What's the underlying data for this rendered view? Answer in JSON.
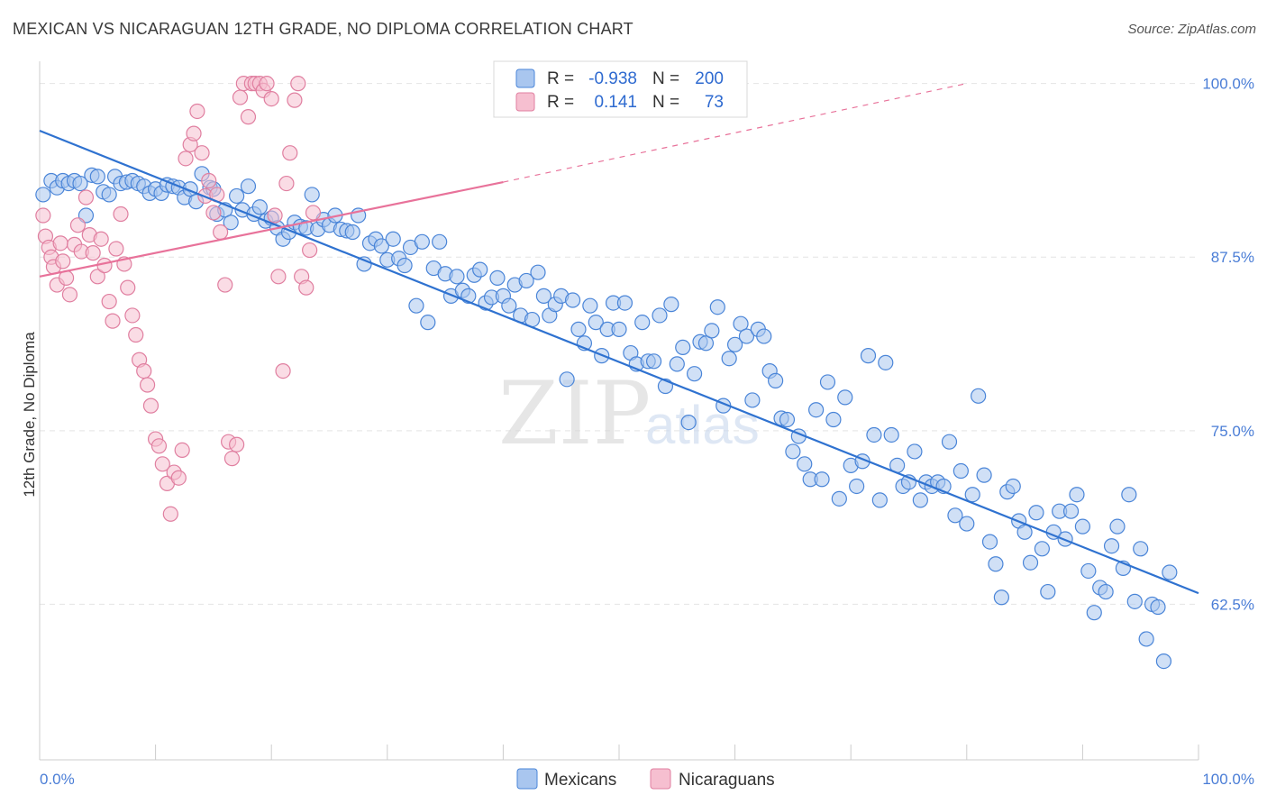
{
  "title": "MEXICAN VS NICARAGUAN 12TH GRADE, NO DIPLOMA CORRELATION CHART",
  "source": "Source: ZipAtlas.com",
  "watermark": {
    "zip": "ZIP",
    "atlas": "atlas"
  },
  "colors": {
    "blue_fill": "#a9c6ef",
    "blue_stroke": "#4a85d8",
    "blue_line": "#2f72d0",
    "pink_fill": "#f6bfd0",
    "pink_stroke": "#e07fa0",
    "pink_line": "#e8729a",
    "grid": "#e4e4e4",
    "axis_text": "#4a7dd6"
  },
  "legend": {
    "rows": [
      {
        "r_label": "R =",
        "r_value": "-0.938",
        "n_label": "N =",
        "n_value": "200"
      },
      {
        "r_label": "R =",
        "r_value": "0.141",
        "n_label": "N =",
        "n_value": "73"
      }
    ]
  },
  "bottom_legend": {
    "items": [
      {
        "label": "Mexicans"
      },
      {
        "label": "Nicaraguans"
      }
    ]
  },
  "chart_data": {
    "type": "scatter",
    "title": "MEXICAN VS NICARAGUAN 12TH GRADE, NO DIPLOMA CORRELATION CHART",
    "xlabel": "",
    "ylabel": "12th Grade, No Diploma",
    "xlim": [
      0,
      100
    ],
    "ylim": [
      51.3,
      101.6
    ],
    "x_tick_labels": [
      "0.0%",
      "100.0%"
    ],
    "y_ticks": [
      62.5,
      75.0,
      87.5,
      100.0
    ],
    "y_tick_labels": [
      "62.5%",
      "75.0%",
      "87.5%",
      "100.0%"
    ],
    "grid": true,
    "legend_position": "top-center",
    "series": [
      {
        "name": "Mexicans",
        "R": -0.938,
        "N": 200,
        "trend": {
          "x": [
            0,
            100
          ],
          "y": [
            96.6,
            63.3
          ]
        },
        "points": [
          [
            0.3,
            92.0
          ],
          [
            1.0,
            93.0
          ],
          [
            1.5,
            92.5
          ],
          [
            2.0,
            93.0
          ],
          [
            2.5,
            92.8
          ],
          [
            3.0,
            93.0
          ],
          [
            3.5,
            92.8
          ],
          [
            4.0,
            90.5
          ],
          [
            4.5,
            93.4
          ],
          [
            5.0,
            93.3
          ],
          [
            5.5,
            92.2
          ],
          [
            6.0,
            92.0
          ],
          [
            6.5,
            93.3
          ],
          [
            7.0,
            92.8
          ],
          [
            7.5,
            92.9
          ],
          [
            8.0,
            93.0
          ],
          [
            8.5,
            92.8
          ],
          [
            9.0,
            92.6
          ],
          [
            9.5,
            92.1
          ],
          [
            10.0,
            92.4
          ],
          [
            10.5,
            92.1
          ],
          [
            11.0,
            92.7
          ],
          [
            11.5,
            92.6
          ],
          [
            12.0,
            92.5
          ],
          [
            12.5,
            91.8
          ],
          [
            13.0,
            92.4
          ],
          [
            13.5,
            91.5
          ],
          [
            14.0,
            93.5
          ],
          [
            14.7,
            92.5
          ],
          [
            15.0,
            92.4
          ],
          [
            15.3,
            90.6
          ],
          [
            16.0,
            90.9
          ],
          [
            16.5,
            90.0
          ],
          [
            17.0,
            91.9
          ],
          [
            17.5,
            90.9
          ],
          [
            18.0,
            92.6
          ],
          [
            18.5,
            90.6
          ],
          [
            19.0,
            91.1
          ],
          [
            19.5,
            90.1
          ],
          [
            20.0,
            90.3
          ],
          [
            20.5,
            89.6
          ],
          [
            21.0,
            88.8
          ],
          [
            21.5,
            89.3
          ],
          [
            22.0,
            90.0
          ],
          [
            22.5,
            89.7
          ],
          [
            23.0,
            89.6
          ],
          [
            23.5,
            92.0
          ],
          [
            24.0,
            89.5
          ],
          [
            24.5,
            90.2
          ],
          [
            25.0,
            89.8
          ],
          [
            25.5,
            90.5
          ],
          [
            26.0,
            89.5
          ],
          [
            26.5,
            89.4
          ],
          [
            27.0,
            89.3
          ],
          [
            27.5,
            90.5
          ],
          [
            28.0,
            87.0
          ],
          [
            28.5,
            88.5
          ],
          [
            29.0,
            88.8
          ],
          [
            29.5,
            88.3
          ],
          [
            30.0,
            87.3
          ],
          [
            30.5,
            88.8
          ],
          [
            31.0,
            87.4
          ],
          [
            31.5,
            86.9
          ],
          [
            32.0,
            88.2
          ],
          [
            32.5,
            84.0
          ],
          [
            33.0,
            88.6
          ],
          [
            33.5,
            82.8
          ],
          [
            34.0,
            86.7
          ],
          [
            34.5,
            88.6
          ],
          [
            35.0,
            86.3
          ],
          [
            35.5,
            84.7
          ],
          [
            36.0,
            86.1
          ],
          [
            36.5,
            85.1
          ],
          [
            37.0,
            84.7
          ],
          [
            37.5,
            86.2
          ],
          [
            38.0,
            86.6
          ],
          [
            38.5,
            84.2
          ],
          [
            39.0,
            84.6
          ],
          [
            39.5,
            86.0
          ],
          [
            40.0,
            84.7
          ],
          [
            40.5,
            84.0
          ],
          [
            41.0,
            85.5
          ],
          [
            41.5,
            83.3
          ],
          [
            42.0,
            85.8
          ],
          [
            42.5,
            83.0
          ],
          [
            43.0,
            86.4
          ],
          [
            43.5,
            84.7
          ],
          [
            44.0,
            83.3
          ],
          [
            44.5,
            84.1
          ],
          [
            45.0,
            84.7
          ],
          [
            45.5,
            78.7
          ],
          [
            46.0,
            84.4
          ],
          [
            46.5,
            82.3
          ],
          [
            47.0,
            81.3
          ],
          [
            47.5,
            84.0
          ],
          [
            48.0,
            82.8
          ],
          [
            48.5,
            80.4
          ],
          [
            49.0,
            82.3
          ],
          [
            49.5,
            84.2
          ],
          [
            50.0,
            82.3
          ],
          [
            50.5,
            84.2
          ],
          [
            51.0,
            80.6
          ],
          [
            51.5,
            79.8
          ],
          [
            52.0,
            82.8
          ],
          [
            52.5,
            80.0
          ],
          [
            53.0,
            80.0
          ],
          [
            53.5,
            83.3
          ],
          [
            54.0,
            78.2
          ],
          [
            54.5,
            84.1
          ],
          [
            55.0,
            79.8
          ],
          [
            55.5,
            81.0
          ],
          [
            56.0,
            75.6
          ],
          [
            56.5,
            79.1
          ],
          [
            57.0,
            81.4
          ],
          [
            57.5,
            81.3
          ],
          [
            58.0,
            82.2
          ],
          [
            58.5,
            83.9
          ],
          [
            59.0,
            76.8
          ],
          [
            59.5,
            80.2
          ],
          [
            60.0,
            81.2
          ],
          [
            60.5,
            82.7
          ],
          [
            61.0,
            81.8
          ],
          [
            61.5,
            77.2
          ],
          [
            62.0,
            82.3
          ],
          [
            62.5,
            81.8
          ],
          [
            63.0,
            79.3
          ],
          [
            63.5,
            78.6
          ],
          [
            64.0,
            75.9
          ],
          [
            64.5,
            75.8
          ],
          [
            65.0,
            73.5
          ],
          [
            65.5,
            74.6
          ],
          [
            66.0,
            72.6
          ],
          [
            66.5,
            71.5
          ],
          [
            67.0,
            76.5
          ],
          [
            67.5,
            71.5
          ],
          [
            68.0,
            78.5
          ],
          [
            68.5,
            75.8
          ],
          [
            69.0,
            70.1
          ],
          [
            69.5,
            77.4
          ],
          [
            70.0,
            72.5
          ],
          [
            70.5,
            71.0
          ],
          [
            71.0,
            72.8
          ],
          [
            71.5,
            80.4
          ],
          [
            72.0,
            74.7
          ],
          [
            72.5,
            70.0
          ],
          [
            73.0,
            79.9
          ],
          [
            73.5,
            74.7
          ],
          [
            74.0,
            72.5
          ],
          [
            74.5,
            71.0
          ],
          [
            75.0,
            71.3
          ],
          [
            75.5,
            73.5
          ],
          [
            76.0,
            70.0
          ],
          [
            76.5,
            71.3
          ],
          [
            77.0,
            71.0
          ],
          [
            77.5,
            71.3
          ],
          [
            78.0,
            71.0
          ],
          [
            78.5,
            74.2
          ],
          [
            79.0,
            68.9
          ],
          [
            79.5,
            72.1
          ],
          [
            80.0,
            68.3
          ],
          [
            80.5,
            70.4
          ],
          [
            81.0,
            77.5
          ],
          [
            81.5,
            71.8
          ],
          [
            82.0,
            67.0
          ],
          [
            82.5,
            65.4
          ],
          [
            83.0,
            63.0
          ],
          [
            83.5,
            70.6
          ],
          [
            84.0,
            71.0
          ],
          [
            84.5,
            68.5
          ],
          [
            85.0,
            67.7
          ],
          [
            85.5,
            65.5
          ],
          [
            86.0,
            69.1
          ],
          [
            86.5,
            66.5
          ],
          [
            87.0,
            63.4
          ],
          [
            87.5,
            67.7
          ],
          [
            88.0,
            69.2
          ],
          [
            88.5,
            67.2
          ],
          [
            89.0,
            69.2
          ],
          [
            89.5,
            70.4
          ],
          [
            90.0,
            68.1
          ],
          [
            90.5,
            64.9
          ],
          [
            91.0,
            61.9
          ],
          [
            91.5,
            63.7
          ],
          [
            92.0,
            63.4
          ],
          [
            92.5,
            66.7
          ],
          [
            93.0,
            68.1
          ],
          [
            93.5,
            65.1
          ],
          [
            94.0,
            70.4
          ],
          [
            94.5,
            62.7
          ],
          [
            95.0,
            66.5
          ],
          [
            95.5,
            60.0
          ],
          [
            96.0,
            62.5
          ],
          [
            96.5,
            62.3
          ],
          [
            97.0,
            58.4
          ],
          [
            97.5,
            64.8
          ]
        ]
      },
      {
        "name": "Nicaraguans",
        "R": 0.141,
        "N": 73,
        "trend": {
          "x": [
            0,
            40
          ],
          "y": [
            86.1,
            92.9
          ]
        },
        "trend_dashed": {
          "x": [
            40,
            80
          ],
          "y": [
            92.9,
            100.0
          ]
        },
        "points": [
          [
            0.3,
            90.5
          ],
          [
            0.5,
            89.0
          ],
          [
            0.8,
            88.2
          ],
          [
            1.0,
            87.5
          ],
          [
            1.2,
            86.8
          ],
          [
            1.5,
            85.5
          ],
          [
            1.8,
            88.5
          ],
          [
            2.0,
            87.2
          ],
          [
            2.3,
            86.0
          ],
          [
            2.6,
            84.8
          ],
          [
            3.0,
            88.4
          ],
          [
            3.3,
            89.8
          ],
          [
            3.6,
            87.9
          ],
          [
            4.0,
            91.8
          ],
          [
            4.3,
            89.1
          ],
          [
            4.6,
            87.8
          ],
          [
            5.0,
            86.1
          ],
          [
            5.3,
            88.8
          ],
          [
            5.6,
            86.9
          ],
          [
            6.0,
            84.3
          ],
          [
            6.3,
            82.9
          ],
          [
            6.6,
            88.1
          ],
          [
            7.0,
            90.6
          ],
          [
            7.3,
            87.0
          ],
          [
            7.6,
            85.3
          ],
          [
            8.0,
            83.3
          ],
          [
            8.3,
            81.9
          ],
          [
            8.6,
            80.1
          ],
          [
            9.0,
            79.3
          ],
          [
            9.3,
            78.3
          ],
          [
            9.6,
            76.8
          ],
          [
            10.0,
            74.4
          ],
          [
            10.3,
            73.9
          ],
          [
            10.6,
            72.6
          ],
          [
            11.0,
            71.2
          ],
          [
            11.3,
            69.0
          ],
          [
            11.6,
            72.0
          ],
          [
            12.0,
            71.6
          ],
          [
            12.3,
            73.6
          ],
          [
            12.6,
            94.6
          ],
          [
            13.0,
            95.6
          ],
          [
            13.3,
            96.4
          ],
          [
            13.6,
            98.0
          ],
          [
            14.0,
            95.0
          ],
          [
            14.3,
            91.9
          ],
          [
            14.6,
            93.0
          ],
          [
            15.0,
            90.7
          ],
          [
            15.3,
            92.0
          ],
          [
            15.6,
            89.3
          ],
          [
            16.0,
            85.5
          ],
          [
            16.3,
            74.2
          ],
          [
            16.6,
            73.0
          ],
          [
            17.0,
            74.0
          ],
          [
            17.3,
            99.0
          ],
          [
            17.6,
            100.0
          ],
          [
            18.0,
            97.6
          ],
          [
            18.3,
            100.0
          ],
          [
            18.6,
            100.0
          ],
          [
            19.0,
            100.0
          ],
          [
            19.3,
            99.5
          ],
          [
            19.6,
            100.0
          ],
          [
            20.0,
            98.9
          ],
          [
            20.3,
            90.5
          ],
          [
            20.6,
            86.1
          ],
          [
            21.0,
            79.3
          ],
          [
            21.3,
            92.8
          ],
          [
            21.6,
            95.0
          ],
          [
            22.0,
            98.8
          ],
          [
            22.3,
            100.0
          ],
          [
            22.6,
            86.1
          ],
          [
            23.0,
            85.3
          ],
          [
            23.3,
            88.0
          ],
          [
            23.6,
            90.7
          ]
        ]
      }
    ]
  }
}
